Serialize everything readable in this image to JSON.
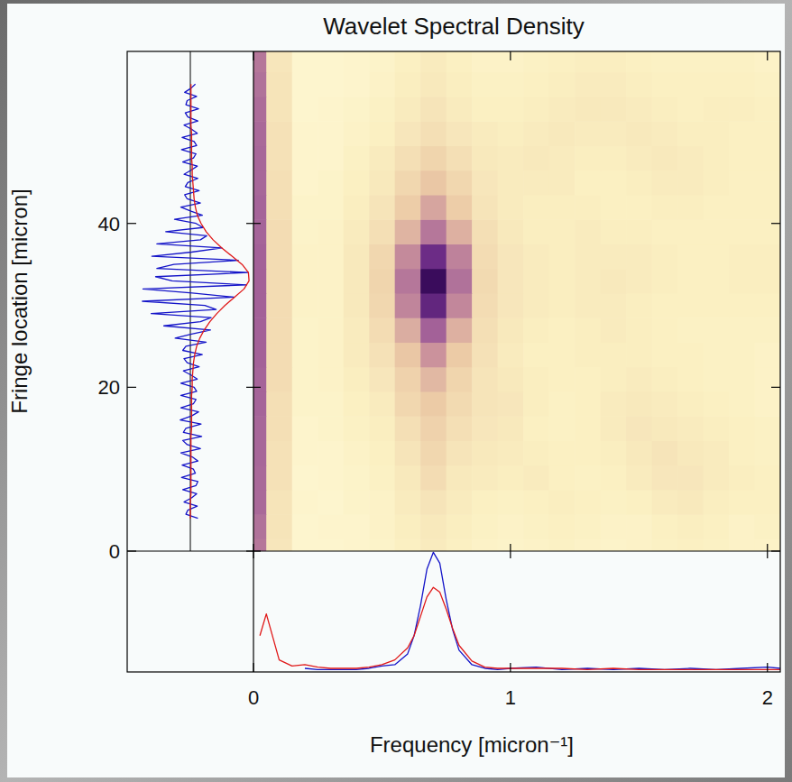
{
  "chart_data": [
    {
      "type": "heatmap",
      "title": "Wavelet Spectral Density",
      "x_label": "Frequency [micron⁻¹]",
      "y_label": "Fringe location [micron]",
      "xlim": [
        0,
        2.05
      ],
      "ylim": [
        0,
        61
      ],
      "xticks": [
        0,
        1,
        2
      ],
      "yticks": [
        0,
        20,
        40
      ],
      "zlim": [
        0,
        1
      ],
      "x": [
        0,
        0.1,
        0.2,
        0.3,
        0.4,
        0.5,
        0.6,
        0.7,
        0.8,
        0.9,
        1.0,
        1.1,
        1.2,
        1.3,
        1.4,
        1.5,
        1.6,
        1.7,
        1.8,
        1.9,
        2.0
      ],
      "y": [
        0,
        3,
        6,
        9,
        12,
        15,
        18,
        21,
        24,
        27,
        30,
        33,
        36,
        39,
        42,
        45,
        48,
        51,
        54,
        57,
        60
      ],
      "z": [
        [
          0.5,
          0.14,
          0.05,
          0.05,
          0.06,
          0.07,
          0.1,
          0.12,
          0.1,
          0.08,
          0.07,
          0.08,
          0.09,
          0.08,
          0.07,
          0.08,
          0.09,
          0.1,
          0.09,
          0.08,
          0.08
        ],
        [
          0.52,
          0.15,
          0.05,
          0.06,
          0.06,
          0.08,
          0.11,
          0.13,
          0.11,
          0.09,
          0.08,
          0.09,
          0.1,
          0.09,
          0.08,
          0.08,
          0.1,
          0.11,
          0.1,
          0.08,
          0.09
        ],
        [
          0.55,
          0.15,
          0.06,
          0.05,
          0.07,
          0.08,
          0.12,
          0.15,
          0.12,
          0.1,
          0.09,
          0.1,
          0.11,
          0.1,
          0.09,
          0.1,
          0.12,
          0.13,
          0.11,
          0.1,
          0.1
        ],
        [
          0.55,
          0.16,
          0.05,
          0.06,
          0.07,
          0.09,
          0.13,
          0.18,
          0.13,
          0.12,
          0.11,
          0.12,
          0.1,
          0.09,
          0.1,
          0.12,
          0.14,
          0.14,
          0.12,
          0.11,
          0.1
        ],
        [
          0.56,
          0.16,
          0.06,
          0.06,
          0.08,
          0.1,
          0.15,
          0.2,
          0.15,
          0.13,
          0.12,
          0.11,
          0.1,
          0.1,
          0.11,
          0.13,
          0.15,
          0.13,
          0.12,
          0.1,
          0.09
        ],
        [
          0.56,
          0.17,
          0.06,
          0.07,
          0.09,
          0.11,
          0.17,
          0.22,
          0.17,
          0.14,
          0.13,
          0.1,
          0.09,
          0.1,
          0.12,
          0.14,
          0.13,
          0.12,
          0.11,
          0.1,
          0.09
        ],
        [
          0.57,
          0.17,
          0.07,
          0.07,
          0.1,
          0.12,
          0.2,
          0.25,
          0.19,
          0.15,
          0.14,
          0.11,
          0.09,
          0.1,
          0.12,
          0.13,
          0.12,
          0.11,
          0.1,
          0.09,
          0.08
        ],
        [
          0.57,
          0.18,
          0.07,
          0.08,
          0.11,
          0.14,
          0.22,
          0.3,
          0.21,
          0.15,
          0.13,
          0.11,
          0.1,
          0.1,
          0.11,
          0.12,
          0.11,
          0.1,
          0.09,
          0.09,
          0.08
        ],
        [
          0.58,
          0.18,
          0.07,
          0.08,
          0.12,
          0.16,
          0.26,
          0.4,
          0.25,
          0.16,
          0.12,
          0.1,
          0.1,
          0.11,
          0.11,
          0.11,
          0.1,
          0.1,
          0.09,
          0.09,
          0.08
        ],
        [
          0.58,
          0.18,
          0.07,
          0.08,
          0.12,
          0.18,
          0.33,
          0.58,
          0.32,
          0.17,
          0.13,
          0.11,
          0.1,
          0.11,
          0.12,
          0.11,
          0.1,
          0.09,
          0.09,
          0.09,
          0.09
        ],
        [
          0.58,
          0.18,
          0.08,
          0.08,
          0.13,
          0.2,
          0.45,
          0.84,
          0.44,
          0.18,
          0.14,
          0.12,
          0.11,
          0.12,
          0.12,
          0.11,
          0.1,
          0.1,
          0.1,
          0.1,
          0.1
        ],
        [
          0.58,
          0.18,
          0.08,
          0.08,
          0.13,
          0.21,
          0.5,
          1.0,
          0.52,
          0.19,
          0.14,
          0.12,
          0.11,
          0.12,
          0.13,
          0.12,
          0.11,
          0.1,
          0.1,
          0.11,
          0.11
        ],
        [
          0.58,
          0.18,
          0.08,
          0.08,
          0.13,
          0.2,
          0.43,
          0.8,
          0.46,
          0.18,
          0.14,
          0.12,
          0.11,
          0.12,
          0.12,
          0.12,
          0.11,
          0.1,
          0.1,
          0.11,
          0.11
        ],
        [
          0.57,
          0.18,
          0.07,
          0.08,
          0.12,
          0.17,
          0.31,
          0.5,
          0.32,
          0.17,
          0.13,
          0.11,
          0.11,
          0.12,
          0.11,
          0.11,
          0.1,
          0.1,
          0.1,
          0.1,
          0.1
        ],
        [
          0.57,
          0.17,
          0.07,
          0.07,
          0.11,
          0.15,
          0.24,
          0.35,
          0.24,
          0.15,
          0.12,
          0.11,
          0.11,
          0.11,
          0.1,
          0.1,
          0.11,
          0.11,
          0.1,
          0.1,
          0.1
        ],
        [
          0.56,
          0.17,
          0.06,
          0.07,
          0.1,
          0.13,
          0.2,
          0.26,
          0.2,
          0.14,
          0.12,
          0.12,
          0.12,
          0.1,
          0.1,
          0.11,
          0.12,
          0.12,
          0.11,
          0.1,
          0.1
        ],
        [
          0.56,
          0.16,
          0.06,
          0.06,
          0.09,
          0.12,
          0.17,
          0.21,
          0.17,
          0.13,
          0.12,
          0.13,
          0.12,
          0.11,
          0.11,
          0.12,
          0.13,
          0.12,
          0.11,
          0.1,
          0.1
        ],
        [
          0.55,
          0.16,
          0.06,
          0.06,
          0.08,
          0.1,
          0.14,
          0.17,
          0.14,
          0.12,
          0.11,
          0.12,
          0.13,
          0.12,
          0.12,
          0.13,
          0.12,
          0.11,
          0.11,
          0.1,
          0.1
        ],
        [
          0.54,
          0.15,
          0.05,
          0.06,
          0.07,
          0.09,
          0.12,
          0.15,
          0.12,
          0.1,
          0.1,
          0.11,
          0.12,
          0.13,
          0.13,
          0.12,
          0.11,
          0.1,
          0.11,
          0.11,
          0.1
        ],
        [
          0.52,
          0.15,
          0.05,
          0.05,
          0.06,
          0.08,
          0.11,
          0.13,
          0.11,
          0.09,
          0.09,
          0.1,
          0.11,
          0.12,
          0.12,
          0.11,
          0.1,
          0.1,
          0.1,
          0.1,
          0.09
        ],
        [
          0.5,
          0.14,
          0.05,
          0.05,
          0.06,
          0.07,
          0.1,
          0.12,
          0.1,
          0.08,
          0.08,
          0.09,
          0.1,
          0.11,
          0.11,
          0.1,
          0.09,
          0.09,
          0.09,
          0.09,
          0.08
        ]
      ]
    },
    {
      "type": "line",
      "orientation": "horizontal",
      "tick_labels": false,
      "xlim": [
        -1,
        1
      ],
      "ylim": [
        0,
        61
      ],
      "series": [
        {
          "color": "#1414c8",
          "y": [
            4,
            4.5,
            5,
            5.5,
            6,
            6.5,
            7,
            7.5,
            8,
            8.5,
            9,
            9.5,
            10,
            10.5,
            11,
            11.5,
            12,
            12.5,
            13,
            13.5,
            14,
            14.5,
            15,
            15.5,
            16,
            16.5,
            17,
            17.5,
            18,
            18.5,
            19,
            19.5,
            20,
            20.5,
            21,
            21.5,
            22,
            22.5,
            23,
            23.5,
            24,
            24.5,
            25,
            25.5,
            26,
            26.5,
            27,
            27.5,
            28,
            28.5,
            29,
            29.5,
            30,
            30.5,
            31,
            31.5,
            32,
            32.5,
            33,
            33.5,
            34,
            34.5,
            35,
            35.5,
            36,
            36.5,
            37,
            37.5,
            38,
            38.5,
            39,
            39.5,
            40,
            40.5,
            41,
            41.5,
            42,
            42.5,
            43,
            43.5,
            44,
            44.5,
            45,
            45.5,
            46,
            46.5,
            47,
            47.5,
            48,
            48.5,
            49,
            49.5,
            50,
            50.5,
            51,
            51.5,
            52,
            52.5,
            53,
            53.5,
            54,
            54.5,
            55,
            55.5,
            56,
            56.5,
            57
          ],
          "values": [
            0.12,
            -0.07,
            -0.04,
            0.11,
            -0.1,
            0.02,
            0.1,
            -0.12,
            0.09,
            0.12,
            -0.14,
            0.08,
            0.05,
            -0.13,
            0.12,
            0.03,
            -0.15,
            0.16,
            -0.05,
            -0.12,
            0.18,
            -0.11,
            -0.07,
            0.17,
            -0.16,
            0.02,
            0.13,
            -0.15,
            0.05,
            0.09,
            -0.15,
            0.1,
            0.06,
            -0.15,
            0.11,
            0.01,
            -0.11,
            0.14,
            -0.05,
            -0.1,
            0.19,
            -0.12,
            -0.07,
            0.25,
            -0.24,
            0.02,
            0.32,
            -0.42,
            0.16,
            0.33,
            -0.62,
            0.41,
            0.23,
            -0.76,
            0.69,
            0.03,
            -0.75,
            0.89,
            -0.29,
            -0.55,
            0.92,
            -0.53,
            -0.26,
            0.76,
            -0.61,
            0.02,
            0.5,
            -0.53,
            0.16,
            0.26,
            -0.39,
            0.2,
            0.09,
            -0.25,
            0.19,
            0.01,
            -0.15,
            0.16,
            -0.05,
            -0.09,
            0.14,
            -0.08,
            -0.04,
            0.12,
            -0.1,
            0.01,
            0.11,
            -0.12,
            0.05,
            0.09,
            -0.14,
            0.1,
            0.06,
            -0.13,
            0.11,
            0.02,
            -0.1,
            0.12,
            -0.04,
            -0.08,
            0.13,
            -0.07,
            -0.05,
            0.1,
            -0.09,
            0.01,
            0.08
          ]
        },
        {
          "color": "#e01818",
          "y": [
            4,
            5,
            6,
            7,
            8,
            9,
            10,
            11,
            12,
            13,
            14,
            15,
            16,
            17,
            18,
            19,
            20,
            21,
            22,
            23,
            24,
            25,
            26,
            27,
            28,
            29,
            30,
            31,
            32,
            33,
            34,
            35,
            36,
            37,
            38,
            39,
            40,
            41,
            42,
            43,
            44,
            45,
            46,
            47,
            48,
            49,
            50,
            51,
            52,
            53,
            54,
            55,
            56,
            57
          ],
          "values": [
            0.0,
            0.0,
            0.0,
            0.01,
            0.01,
            0.01,
            0.01,
            0.01,
            0.01,
            0.01,
            0.01,
            0.02,
            0.02,
            0.02,
            0.02,
            0.02,
            0.03,
            0.03,
            0.04,
            0.05,
            0.07,
            0.1,
            0.15,
            0.22,
            0.31,
            0.42,
            0.55,
            0.7,
            0.85,
            0.93,
            0.92,
            0.82,
            0.66,
            0.5,
            0.36,
            0.25,
            0.17,
            0.11,
            0.08,
            0.06,
            0.05,
            0.04,
            0.03,
            0.03,
            0.02,
            0.02,
            0.02,
            0.02,
            0.01,
            0.01,
            0.01,
            0.01,
            0.01,
            0.01
          ]
        }
      ]
    },
    {
      "type": "line",
      "tick_labels": false,
      "xlim": [
        0,
        2.05
      ],
      "ylim": [
        0,
        1
      ],
      "x": [
        0.025,
        0.05,
        0.1,
        0.15,
        0.2,
        0.25,
        0.3,
        0.35,
        0.4,
        0.45,
        0.5,
        0.55,
        0.6,
        0.625,
        0.65,
        0.675,
        0.7,
        0.725,
        0.75,
        0.775,
        0.8,
        0.85,
        0.9,
        0.95,
        1.0,
        1.1,
        1.2,
        1.3,
        1.4,
        1.5,
        1.6,
        1.7,
        1.8,
        1.9,
        2.0,
        2.05
      ],
      "series": [
        {
          "color": "#1414c8",
          "values": [
            null,
            null,
            null,
            null,
            0.03,
            0.02,
            0.02,
            0.02,
            0.02,
            0.03,
            0.05,
            0.06,
            0.15,
            0.3,
            0.55,
            0.85,
            0.99,
            0.9,
            0.6,
            0.35,
            0.18,
            0.06,
            0.03,
            0.02,
            0.03,
            0.04,
            0.02,
            0.03,
            0.02,
            0.03,
            0.02,
            0.03,
            0.02,
            0.03,
            0.04,
            0.03
          ]
        },
        {
          "color": "#e01818",
          "values": [
            0.3,
            0.48,
            0.1,
            0.05,
            0.06,
            0.04,
            0.03,
            0.03,
            0.03,
            0.04,
            0.06,
            0.1,
            0.2,
            0.3,
            0.46,
            0.62,
            0.7,
            0.66,
            0.52,
            0.36,
            0.22,
            0.09,
            0.04,
            0.03,
            0.03,
            0.03,
            0.03,
            0.02,
            0.03,
            0.02,
            0.02,
            0.02,
            0.02,
            0.02,
            0.02,
            0.02
          ]
        }
      ]
    }
  ]
}
